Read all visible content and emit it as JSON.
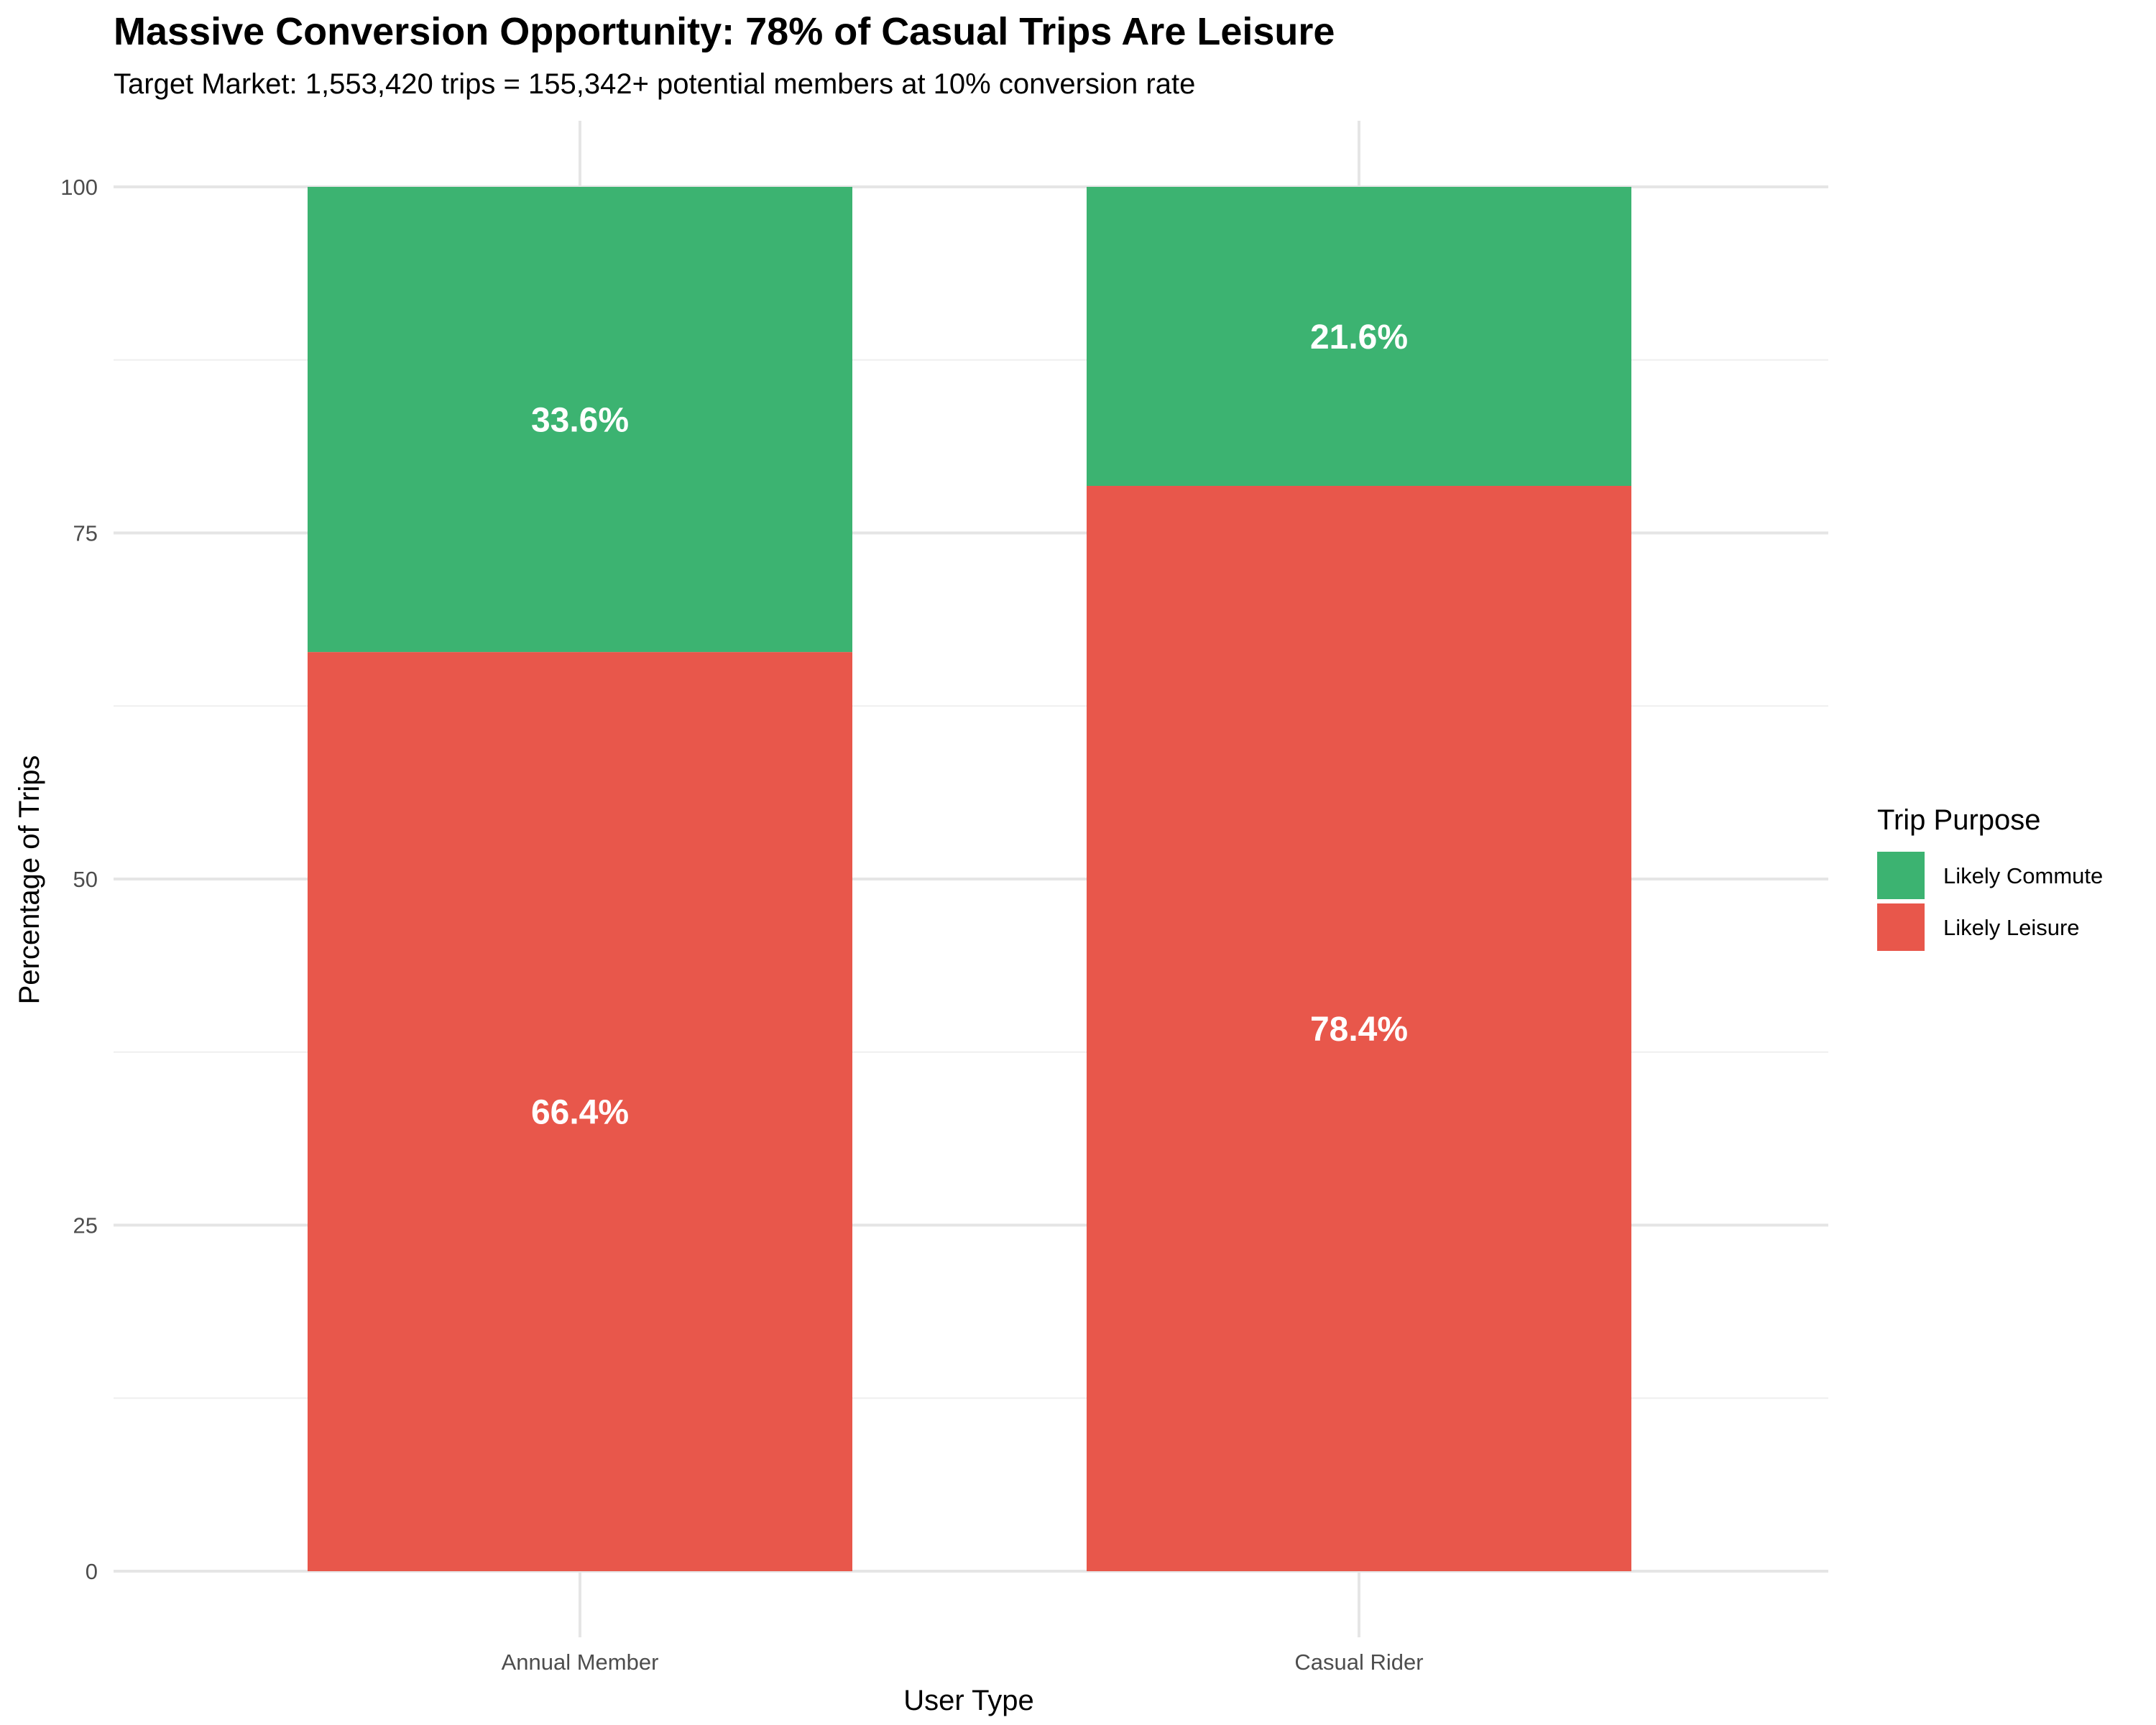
{
  "chart_data": {
    "type": "bar",
    "stacked": true,
    "title": "Massive Conversion Opportunity: 78% of Casual Trips Are Leisure",
    "subtitle": "Target Market: 1,553,420 trips = 155,342+ potential members at 10% conversion rate",
    "xlabel": "User Type",
    "ylabel": "Percentage of Trips",
    "categories": [
      "Annual Member",
      "Casual Rider"
    ],
    "ylim": [
      0,
      100
    ],
    "yticks": [
      0,
      25,
      50,
      75,
      100
    ],
    "ytick_labels": [
      "0",
      "25",
      "50",
      "75",
      "100"
    ],
    "grid": true,
    "legend": {
      "title": "Trip Purpose",
      "placement": "right"
    },
    "series": [
      {
        "name": "Likely Leisure",
        "values": [
          66.4,
          78.4
        ],
        "labels": [
          "66.4%",
          "78.4%"
        ],
        "color": "#e8574b"
      },
      {
        "name": "Likely Commute",
        "values": [
          33.6,
          21.6
        ],
        "labels": [
          "33.6%",
          "21.6%"
        ],
        "color": "#3cb371"
      }
    ],
    "legend_order": [
      "Likely Commute",
      "Likely Leisure"
    ]
  }
}
